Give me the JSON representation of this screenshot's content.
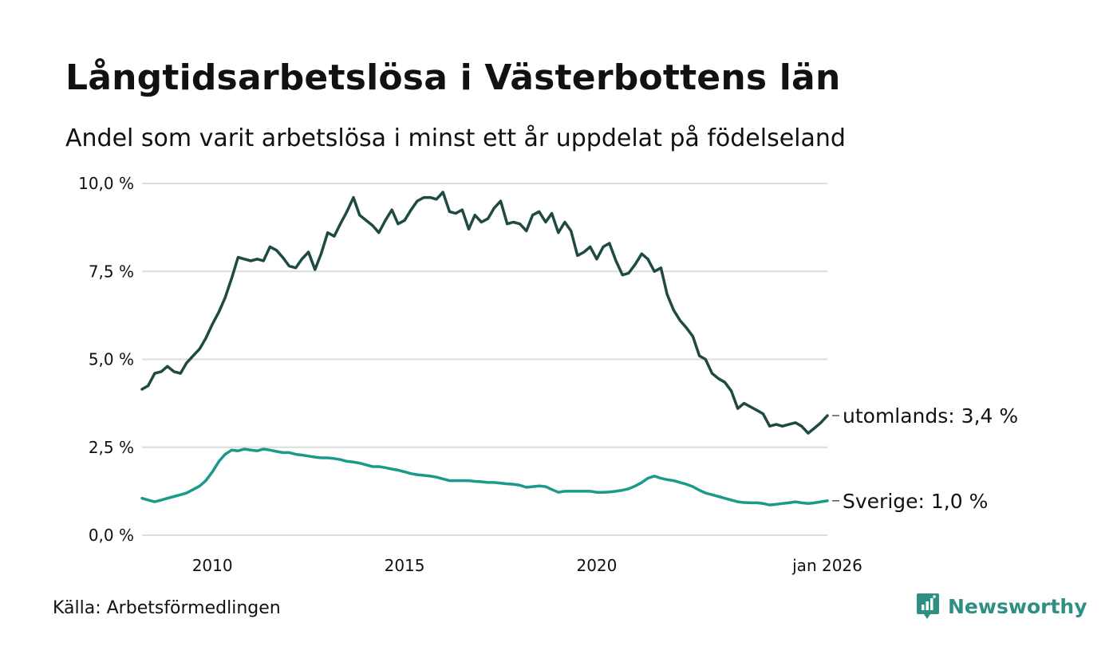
{
  "header": {
    "title": "Långtidsarbetslösa i Västerbottens län",
    "subtitle": "Andel som varit arbetslösa i minst ett år uppdelat på födelseland"
  },
  "footer": {
    "source": "Källa: Arbetsförmedlingen",
    "brand": "Newsworthy"
  },
  "colors": {
    "utomlands": "#1f4a44",
    "sverige": "#1a9a8a",
    "grid": "#dcdcdc",
    "brand": "#2f8f83"
  },
  "chart_data": {
    "type": "line",
    "title": "Långtidsarbetslösa i Västerbottens län",
    "subtitle": "Andel som varit arbetslösa i minst ett år uppdelat på födelseland",
    "xlabel": "",
    "ylabel": "",
    "xlim": [
      2008.17,
      2026.0
    ],
    "ylim": [
      0,
      10
    ],
    "grid": true,
    "y_ticks": [
      {
        "value": 0,
        "label": "0,0 %"
      },
      {
        "value": 2.5,
        "label": "2,5 %"
      },
      {
        "value": 5,
        "label": "5,0 %"
      },
      {
        "value": 7.5,
        "label": "7,5 %"
      },
      {
        "value": 10,
        "label": "10,0 %"
      }
    ],
    "x_ticks": [
      {
        "value": 2010,
        "label": "2010"
      },
      {
        "value": 2015,
        "label": "2015"
      },
      {
        "value": 2020,
        "label": "2020"
      },
      {
        "value": 2026.0,
        "label": "jan 2026"
      }
    ],
    "series": [
      {
        "name": "utomlands",
        "end_label": "utomlands: 3,4 %",
        "points": [
          [
            2008.17,
            4.15
          ],
          [
            2008.33,
            4.25
          ],
          [
            2008.5,
            4.6
          ],
          [
            2008.67,
            4.65
          ],
          [
            2008.83,
            4.8
          ],
          [
            2009.0,
            4.65
          ],
          [
            2009.17,
            4.6
          ],
          [
            2009.33,
            4.9
          ],
          [
            2009.5,
            5.1
          ],
          [
            2009.67,
            5.3
          ],
          [
            2009.83,
            5.6
          ],
          [
            2010.0,
            6.0
          ],
          [
            2010.17,
            6.35
          ],
          [
            2010.33,
            6.75
          ],
          [
            2010.5,
            7.3
          ],
          [
            2010.67,
            7.9
          ],
          [
            2010.83,
            7.85
          ],
          [
            2011.0,
            7.8
          ],
          [
            2011.17,
            7.85
          ],
          [
            2011.33,
            7.8
          ],
          [
            2011.5,
            8.2
          ],
          [
            2011.67,
            8.1
          ],
          [
            2011.83,
            7.9
          ],
          [
            2012.0,
            7.65
          ],
          [
            2012.17,
            7.6
          ],
          [
            2012.33,
            7.85
          ],
          [
            2012.5,
            8.05
          ],
          [
            2012.67,
            7.55
          ],
          [
            2012.83,
            8.0
          ],
          [
            2013.0,
            8.6
          ],
          [
            2013.17,
            8.5
          ],
          [
            2013.33,
            8.85
          ],
          [
            2013.5,
            9.2
          ],
          [
            2013.67,
            9.6
          ],
          [
            2013.83,
            9.1
          ],
          [
            2014.0,
            8.95
          ],
          [
            2014.17,
            8.8
          ],
          [
            2014.33,
            8.6
          ],
          [
            2014.5,
            8.95
          ],
          [
            2014.67,
            9.25
          ],
          [
            2014.83,
            8.85
          ],
          [
            2015.0,
            8.95
          ],
          [
            2015.17,
            9.25
          ],
          [
            2015.33,
            9.5
          ],
          [
            2015.5,
            9.6
          ],
          [
            2015.67,
            9.6
          ],
          [
            2015.83,
            9.55
          ],
          [
            2016.0,
            9.75
          ],
          [
            2016.17,
            9.2
          ],
          [
            2016.33,
            9.15
          ],
          [
            2016.5,
            9.25
          ],
          [
            2016.67,
            8.7
          ],
          [
            2016.83,
            9.1
          ],
          [
            2017.0,
            8.9
          ],
          [
            2017.17,
            9.0
          ],
          [
            2017.33,
            9.3
          ],
          [
            2017.5,
            9.5
          ],
          [
            2017.67,
            8.85
          ],
          [
            2017.83,
            8.9
          ],
          [
            2018.0,
            8.85
          ],
          [
            2018.17,
            8.65
          ],
          [
            2018.33,
            9.1
          ],
          [
            2018.5,
            9.2
          ],
          [
            2018.67,
            8.9
          ],
          [
            2018.83,
            9.15
          ],
          [
            2019.0,
            8.6
          ],
          [
            2019.17,
            8.9
          ],
          [
            2019.33,
            8.65
          ],
          [
            2019.5,
            7.95
          ],
          [
            2019.67,
            8.05
          ],
          [
            2019.83,
            8.2
          ],
          [
            2020.0,
            7.85
          ],
          [
            2020.17,
            8.2
          ],
          [
            2020.33,
            8.3
          ],
          [
            2020.5,
            7.8
          ],
          [
            2020.67,
            7.4
          ],
          [
            2020.83,
            7.45
          ],
          [
            2021.0,
            7.7
          ],
          [
            2021.17,
            8.0
          ],
          [
            2021.33,
            7.85
          ],
          [
            2021.5,
            7.5
          ],
          [
            2021.67,
            7.6
          ],
          [
            2021.83,
            6.85
          ],
          [
            2022.0,
            6.4
          ],
          [
            2022.17,
            6.1
          ],
          [
            2022.33,
            5.9
          ],
          [
            2022.5,
            5.65
          ],
          [
            2022.67,
            5.1
          ],
          [
            2022.83,
            5.0
          ],
          [
            2023.0,
            4.6
          ],
          [
            2023.17,
            4.45
          ],
          [
            2023.33,
            4.35
          ],
          [
            2023.5,
            4.1
          ],
          [
            2023.67,
            3.6
          ],
          [
            2023.83,
            3.75
          ],
          [
            2024.0,
            3.65
          ],
          [
            2024.17,
            3.55
          ],
          [
            2024.33,
            3.45
          ],
          [
            2024.5,
            3.1
          ],
          [
            2024.67,
            3.15
          ],
          [
            2024.83,
            3.1
          ],
          [
            2025.0,
            3.15
          ],
          [
            2025.17,
            3.2
          ],
          [
            2025.33,
            3.1
          ],
          [
            2025.5,
            2.9
          ],
          [
            2025.67,
            3.05
          ],
          [
            2025.83,
            3.2
          ],
          [
            2026.0,
            3.4
          ]
        ]
      },
      {
        "name": "Sverige",
        "end_label": "Sverige: 1,0 %",
        "points": [
          [
            2008.17,
            1.05
          ],
          [
            2008.33,
            1.0
          ],
          [
            2008.5,
            0.95
          ],
          [
            2008.67,
            1.0
          ],
          [
            2008.83,
            1.05
          ],
          [
            2009.0,
            1.1
          ],
          [
            2009.17,
            1.15
          ],
          [
            2009.33,
            1.2
          ],
          [
            2009.5,
            1.3
          ],
          [
            2009.67,
            1.4
          ],
          [
            2009.83,
            1.55
          ],
          [
            2010.0,
            1.8
          ],
          [
            2010.17,
            2.1
          ],
          [
            2010.33,
            2.3
          ],
          [
            2010.5,
            2.42
          ],
          [
            2010.67,
            2.4
          ],
          [
            2010.83,
            2.45
          ],
          [
            2011.0,
            2.42
          ],
          [
            2011.17,
            2.4
          ],
          [
            2011.33,
            2.45
          ],
          [
            2011.5,
            2.42
          ],
          [
            2011.67,
            2.38
          ],
          [
            2011.83,
            2.35
          ],
          [
            2012.0,
            2.35
          ],
          [
            2012.17,
            2.3
          ],
          [
            2012.33,
            2.28
          ],
          [
            2012.5,
            2.25
          ],
          [
            2012.67,
            2.22
          ],
          [
            2012.83,
            2.2
          ],
          [
            2013.0,
            2.2
          ],
          [
            2013.17,
            2.18
          ],
          [
            2013.33,
            2.15
          ],
          [
            2013.5,
            2.1
          ],
          [
            2013.67,
            2.08
          ],
          [
            2013.83,
            2.05
          ],
          [
            2014.0,
            2.0
          ],
          [
            2014.17,
            1.95
          ],
          [
            2014.33,
            1.95
          ],
          [
            2014.5,
            1.92
          ],
          [
            2014.67,
            1.88
          ],
          [
            2014.83,
            1.85
          ],
          [
            2015.0,
            1.8
          ],
          [
            2015.17,
            1.75
          ],
          [
            2015.33,
            1.72
          ],
          [
            2015.5,
            1.7
          ],
          [
            2015.67,
            1.68
          ],
          [
            2015.83,
            1.65
          ],
          [
            2016.0,
            1.6
          ],
          [
            2016.17,
            1.55
          ],
          [
            2016.33,
            1.55
          ],
          [
            2016.5,
            1.55
          ],
          [
            2016.67,
            1.55
          ],
          [
            2016.83,
            1.53
          ],
          [
            2017.0,
            1.52
          ],
          [
            2017.17,
            1.5
          ],
          [
            2017.33,
            1.5
          ],
          [
            2017.5,
            1.48
          ],
          [
            2017.67,
            1.46
          ],
          [
            2017.83,
            1.45
          ],
          [
            2018.0,
            1.42
          ],
          [
            2018.17,
            1.36
          ],
          [
            2018.33,
            1.38
          ],
          [
            2018.5,
            1.4
          ],
          [
            2018.67,
            1.38
          ],
          [
            2018.83,
            1.3
          ],
          [
            2019.0,
            1.22
          ],
          [
            2019.17,
            1.25
          ],
          [
            2019.33,
            1.25
          ],
          [
            2019.5,
            1.25
          ],
          [
            2019.67,
            1.25
          ],
          [
            2019.83,
            1.25
          ],
          [
            2020.0,
            1.22
          ],
          [
            2020.17,
            1.22
          ],
          [
            2020.33,
            1.23
          ],
          [
            2020.5,
            1.25
          ],
          [
            2020.67,
            1.28
          ],
          [
            2020.83,
            1.32
          ],
          [
            2021.0,
            1.4
          ],
          [
            2021.17,
            1.5
          ],
          [
            2021.33,
            1.62
          ],
          [
            2021.5,
            1.68
          ],
          [
            2021.67,
            1.62
          ],
          [
            2021.83,
            1.58
          ],
          [
            2022.0,
            1.55
          ],
          [
            2022.17,
            1.5
          ],
          [
            2022.33,
            1.45
          ],
          [
            2022.5,
            1.38
          ],
          [
            2022.67,
            1.28
          ],
          [
            2022.83,
            1.2
          ],
          [
            2023.0,
            1.15
          ],
          [
            2023.17,
            1.1
          ],
          [
            2023.33,
            1.05
          ],
          [
            2023.5,
            1.0
          ],
          [
            2023.67,
            0.95
          ],
          [
            2023.83,
            0.93
          ],
          [
            2024.0,
            0.92
          ],
          [
            2024.17,
            0.92
          ],
          [
            2024.33,
            0.9
          ],
          [
            2024.5,
            0.86
          ],
          [
            2024.67,
            0.88
          ],
          [
            2024.83,
            0.9
          ],
          [
            2025.0,
            0.92
          ],
          [
            2025.17,
            0.95
          ],
          [
            2025.33,
            0.92
          ],
          [
            2025.5,
            0.9
          ],
          [
            2025.67,
            0.92
          ],
          [
            2025.83,
            0.95
          ],
          [
            2026.0,
            0.98
          ]
        ]
      }
    ]
  }
}
